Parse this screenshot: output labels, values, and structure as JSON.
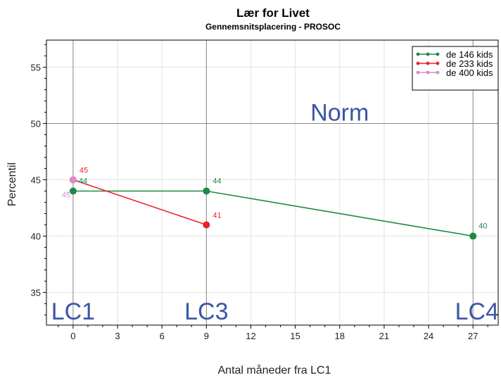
{
  "chart_data": {
    "type": "line",
    "title": "Lær for Livet",
    "subtitle": "Gennemsnitsplacering - PROSOC",
    "xlabel": "Antal måneder fra LC1",
    "ylabel": "Percentil",
    "xlim": [
      -1.8,
      28.7
    ],
    "ylim": [
      32.1,
      57.4
    ],
    "x_ticks": [
      0,
      3,
      6,
      9,
      12,
      15,
      18,
      21,
      24,
      27
    ],
    "y_ticks": [
      35,
      40,
      45,
      50,
      55
    ],
    "grid": true,
    "legend_position": "top-right",
    "series": [
      {
        "name": "de 146 kids",
        "color": "#1b8a45",
        "x": [
          0,
          9,
          27
        ],
        "y": [
          44,
          44,
          40
        ],
        "labels": [
          "44",
          "44",
          "40"
        ]
      },
      {
        "name": "de 233 kids",
        "color": "#e8242a",
        "x": [
          0,
          9
        ],
        "y": [
          45,
          41
        ],
        "labels": [
          "45",
          "41"
        ]
      },
      {
        "name": "de 400 kids",
        "color": "#d98cc6",
        "x": [
          0
        ],
        "y": [
          45
        ],
        "labels": [
          "45"
        ]
      }
    ],
    "annotations": [
      {
        "text": "Norm",
        "x": 18,
        "y": 51,
        "color": "#3a55a4"
      },
      {
        "text": "LC1",
        "x": 0,
        "y": 34,
        "color": "#3a55a4"
      },
      {
        "text": "LC3",
        "x": 9,
        "y": 34,
        "color": "#3a55a4"
      },
      {
        "text": "LC4",
        "x": 27,
        "y": 34,
        "color": "#3a55a4"
      }
    ],
    "reference_lines": {
      "vertical_x": [
        0,
        9,
        27
      ],
      "horizontal_y": [
        50
      ]
    }
  }
}
